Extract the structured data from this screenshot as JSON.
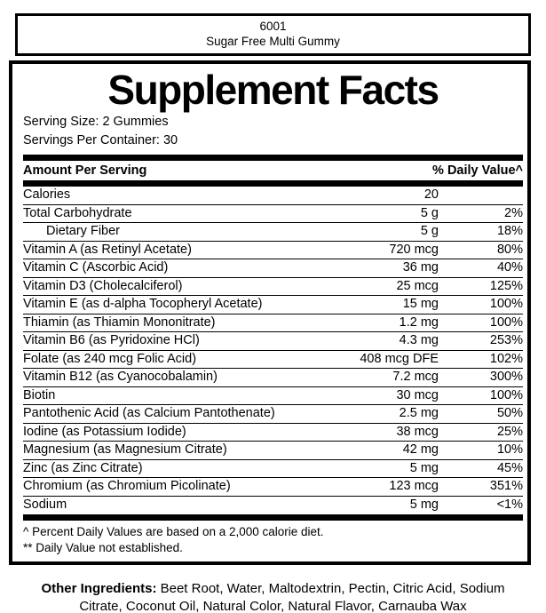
{
  "colors": {
    "ink": "#000000",
    "paper": "#ffffff"
  },
  "product": {
    "code": "6001",
    "name": "Sugar Free Multi Gummy"
  },
  "panel": {
    "title": "Supplement Facts",
    "serving_size": "Serving Size: 2 Gummies",
    "servings_per_container": "Servings Per Container: 30",
    "amount_header": "Amount Per Serving",
    "dv_header": "% Daily Value^",
    "rows": [
      {
        "name": "Calories",
        "amount": "20",
        "dv": ""
      },
      {
        "name": "Total Carbohydrate",
        "amount": "5 g",
        "dv": "2%"
      },
      {
        "name": "Dietary Fiber",
        "amount": "5 g",
        "dv": "18%"
      },
      {
        "name": "Vitamin A (as Retinyl Acetate)",
        "amount": "720 mcg",
        "dv": "80%"
      },
      {
        "name": "Vitamin C (Ascorbic Acid)",
        "amount": "36 mg",
        "dv": "40%"
      },
      {
        "name": "Vitamin D3 (Cholecalciferol)",
        "amount": "25 mcg",
        "dv": "125%"
      },
      {
        "name": "Vitamin E (as d-alpha Tocopheryl Acetate)",
        "amount": "15 mg",
        "dv": "100%"
      },
      {
        "name": "Thiamin (as Thiamin Mononitrate)",
        "amount": "1.2 mg",
        "dv": "100%"
      },
      {
        "name": "Vitamin B6 (as Pyridoxine HCl)",
        "amount": "4.3 mg",
        "dv": "253%"
      },
      {
        "name": "Folate (as 240 mcg Folic Acid)",
        "amount": "408 mcg DFE",
        "dv": "102%"
      },
      {
        "name": "Vitamin B12 (as Cyanocobalamin)",
        "amount": "7.2 mcg",
        "dv": "300%"
      },
      {
        "name": "Biotin",
        "amount": "30 mcg",
        "dv": "100%"
      },
      {
        "name": "Pantothenic Acid (as Calcium Pantothenate)",
        "amount": "2.5 mg",
        "dv": "50%"
      },
      {
        "name": "Iodine (as Potassium Iodide)",
        "amount": "38 mcg",
        "dv": "25%"
      },
      {
        "name": "Magnesium (as Magnesium Citrate)",
        "amount": "42 mg",
        "dv": "10%"
      },
      {
        "name": "Zinc (as Zinc Citrate)",
        "amount": "5 mg",
        "dv": "45%"
      },
      {
        "name": "Chromium (as Chromium Picolinate)",
        "amount": "123 mcg",
        "dv": "351%"
      },
      {
        "name": "Sodium",
        "amount": "5 mg",
        "dv": "<1%"
      }
    ],
    "footnote_dv_basis": "^ Percent Daily Values are based on a 2,000 calorie diet.",
    "footnote_not_established": "** Daily Value not established."
  },
  "other_ingredients": {
    "label": "Other Ingredients:",
    "text": " Beet Root, Water, Maltodextrin, Pectin, Citric Acid, Sodium Citrate, Coconut Oil, Natural Color, Natural Flavor, Carnauba Wax"
  }
}
